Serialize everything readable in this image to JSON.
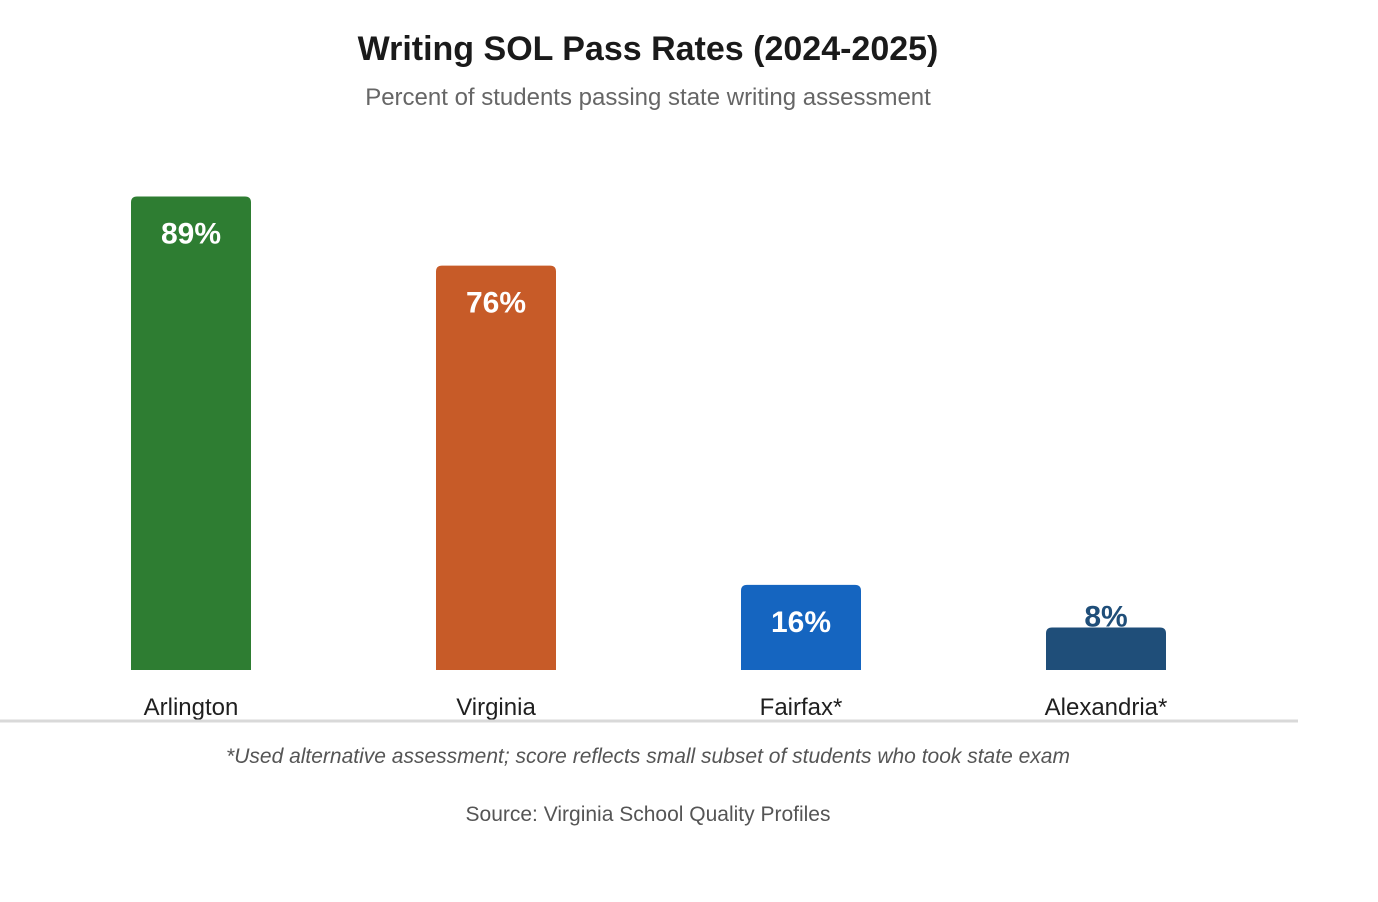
{
  "chart_data": {
    "type": "bar",
    "title": "Writing SOL Pass Rates (2024-2025)",
    "subtitle": "Percent of students passing state writing assessment",
    "categories": [
      "Arlington",
      "Virginia",
      "Fairfax*",
      "Alexandria*"
    ],
    "values": [
      89,
      76,
      16,
      8
    ],
    "value_labels": [
      "89%",
      "76%",
      "16%",
      "8%"
    ],
    "bar_colors": [
      "#2e7d32",
      "#c75b28",
      "#1565c0",
      "#1f4e79"
    ],
    "value_label_colors": [
      "#ffffff",
      "#ffffff",
      "#ffffff",
      "#1f4e79"
    ],
    "value_label_position": [
      "inside",
      "inside",
      "inside",
      "above"
    ],
    "xlabel": "",
    "ylabel": "",
    "ylim": [
      0,
      100
    ],
    "grid": false,
    "legend": "none",
    "footnote": "*Used alternative assessment; score reflects small subset of students who took state exam",
    "source": "Source: Virginia School Quality Profiles"
  }
}
